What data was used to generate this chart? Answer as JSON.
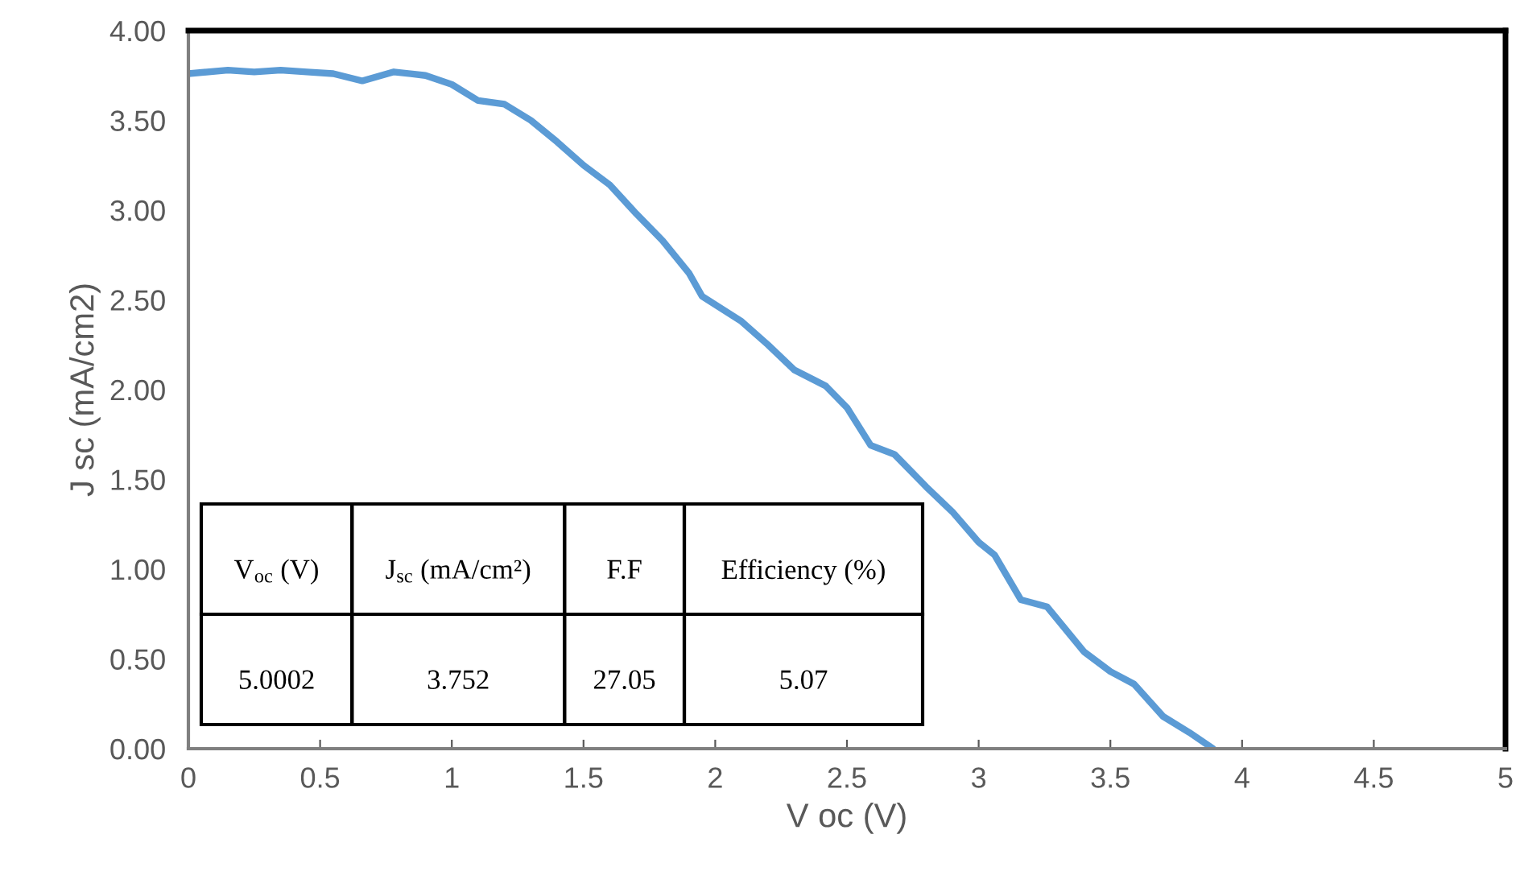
{
  "chart_data": {
    "type": "line",
    "xlabel": "V oc (V)",
    "ylabel": "J sc (mA/cm2)",
    "series": [
      {
        "color": "#5b9bd5",
        "x": [
          0,
          0.15,
          0.25,
          0.35,
          0.45,
          0.55,
          0.66,
          0.78,
          0.9,
          1.0,
          1.1,
          1.2,
          1.3,
          1.4,
          1.5,
          1.6,
          1.7,
          1.8,
          1.9,
          1.95,
          2.1,
          2.2,
          2.3,
          2.42,
          2.5,
          2.59,
          2.68,
          2.8,
          2.9,
          3.0,
          3.06,
          3.16,
          3.26,
          3.4,
          3.5,
          3.59,
          3.7,
          3.8,
          3.89
        ],
        "values": [
          3.76,
          3.78,
          3.77,
          3.78,
          3.77,
          3.76,
          3.72,
          3.77,
          3.75,
          3.7,
          3.61,
          3.59,
          3.5,
          3.38,
          3.25,
          3.14,
          2.98,
          2.83,
          2.65,
          2.52,
          2.38,
          2.25,
          2.11,
          2.02,
          1.9,
          1.69,
          1.64,
          1.46,
          1.32,
          1.15,
          1.08,
          0.83,
          0.79,
          0.54,
          0.43,
          0.36,
          0.18,
          0.09,
          0.0
        ]
      }
    ],
    "xlim": [
      0,
      5
    ],
    "xticks": [
      0,
      0.5,
      1,
      1.5,
      2,
      2.5,
      3,
      3.5,
      4,
      4.5,
      5
    ],
    "ylim": [
      0,
      4
    ],
    "yticks": [
      {
        "value": 0,
        "label": "0.00"
      },
      {
        "value": 0.5,
        "label": "0.50"
      },
      {
        "value": 1,
        "label": "1.00"
      },
      {
        "value": 1.5,
        "label": "1.50"
      },
      {
        "value": 2,
        "label": "2.00"
      },
      {
        "value": 2.5,
        "label": "2.50"
      },
      {
        "value": 3,
        "label": "3.00"
      },
      {
        "value": 3.5,
        "label": "3.50"
      },
      {
        "value": 4,
        "label": "4.00"
      }
    ],
    "grid": false,
    "marker": "none",
    "line_style": "solid",
    "annotations": [
      "V$_{oc}$ (V)",
      "J$_{sc}$ (mA/cm²)",
      "F.F",
      "Efficiency (%)",
      "5.0002",
      "3.752",
      "27.05",
      "5.07"
    ]
  }
}
